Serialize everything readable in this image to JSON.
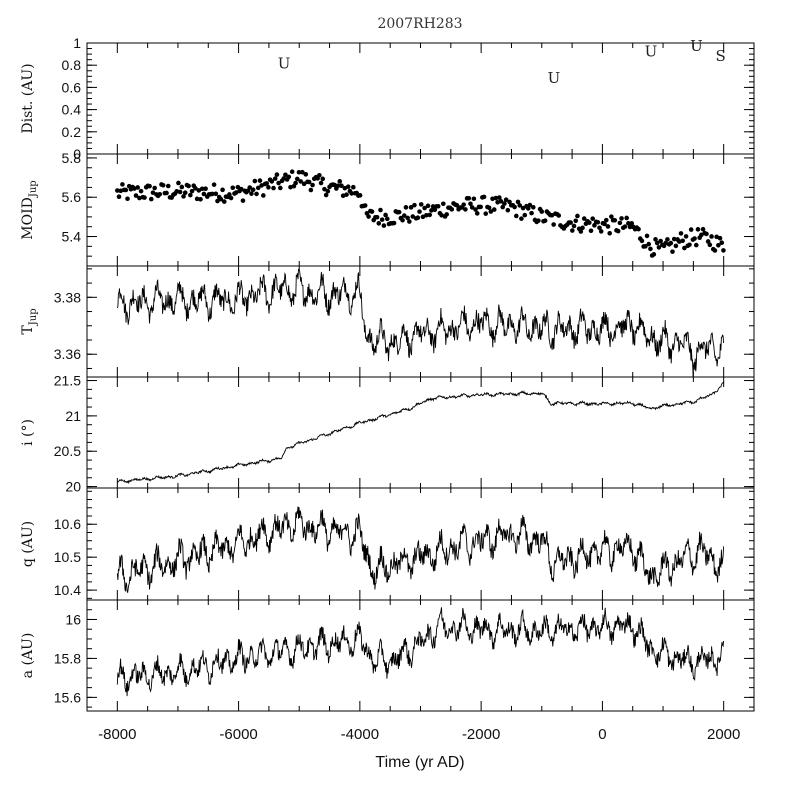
{
  "chart_data": {
    "type": "line",
    "title": "2007RH283",
    "xlabel": "Time (yr AD)",
    "xlim": [
      -8500,
      2500
    ],
    "xticks": [
      "-8000",
      "-6000",
      "-4000",
      "-2000",
      "0",
      "2000"
    ],
    "panels": [
      {
        "id": "dist",
        "ylabel": "Dist. (AU)",
        "ylim": [
          0,
          1
        ],
        "yticks": [
          "0",
          "0.2",
          "0.4",
          "0.6",
          "0.8",
          "1"
        ],
        "ytick_values": [
          0,
          0.2,
          0.4,
          0.6,
          0.8,
          1
        ],
        "style": "labels",
        "encounters": [
          {
            "t": -5250,
            "d": 0.77,
            "label": "U"
          },
          {
            "t": -800,
            "d": 0.64,
            "label": "U"
          },
          {
            "t": 800,
            "d": 0.88,
            "label": "U"
          },
          {
            "t": 1550,
            "d": 0.93,
            "label": "U"
          },
          {
            "t": 1950,
            "d": 0.84,
            "label": "S"
          }
        ]
      },
      {
        "id": "moid",
        "ylabel": "MOID",
        "ylabel_sub": "Jup",
        "ylim": [
          5.25,
          5.82
        ],
        "yticks": [
          "5.4",
          "5.6",
          "5.8"
        ],
        "ytick_values": [
          5.4,
          5.6,
          5.8
        ],
        "style": "scatter",
        "keypoints": [
          [
            -8000,
            5.62
          ],
          [
            -7000,
            5.63
          ],
          [
            -6000,
            5.62
          ],
          [
            -5500,
            5.66
          ],
          [
            -5000,
            5.7
          ],
          [
            -4500,
            5.65
          ],
          [
            -4000,
            5.63
          ],
          [
            -3900,
            5.5
          ],
          [
            -3500,
            5.5
          ],
          [
            -3000,
            5.52
          ],
          [
            -2500,
            5.55
          ],
          [
            -2000,
            5.56
          ],
          [
            -1500,
            5.55
          ],
          [
            -1000,
            5.5
          ],
          [
            -500,
            5.47
          ],
          [
            0,
            5.46
          ],
          [
            500,
            5.45
          ],
          [
            800,
            5.35
          ],
          [
            1000,
            5.33
          ],
          [
            1300,
            5.38
          ],
          [
            1600,
            5.4
          ],
          [
            1800,
            5.38
          ],
          [
            2000,
            5.35
          ]
        ],
        "noise": 0.045
      },
      {
        "id": "tjup",
        "ylabel": "T",
        "ylabel_sub": "Jup",
        "ylim": [
          3.352,
          3.391
        ],
        "yticks": [
          "3.36",
          "3.38"
        ],
        "ytick_values": [
          3.36,
          3.38
        ],
        "style": "line",
        "keypoints": [
          [
            -8000,
            3.378
          ],
          [
            -7000,
            3.379
          ],
          [
            -6000,
            3.379
          ],
          [
            -5500,
            3.382
          ],
          [
            -5200,
            3.383
          ],
          [
            -4500,
            3.381
          ],
          [
            -4000,
            3.382
          ],
          [
            -3900,
            3.366
          ],
          [
            -3500,
            3.364
          ],
          [
            -3000,
            3.367
          ],
          [
            -2500,
            3.369
          ],
          [
            -2000,
            3.371
          ],
          [
            -1500,
            3.37
          ],
          [
            -1000,
            3.369
          ],
          [
            -500,
            3.369
          ],
          [
            0,
            3.369
          ],
          [
            500,
            3.37
          ],
          [
            800,
            3.366
          ],
          [
            1000,
            3.364
          ],
          [
            1300,
            3.364
          ],
          [
            1500,
            3.36
          ],
          [
            1800,
            3.363
          ],
          [
            2000,
            3.36
          ]
        ],
        "noise": 0.0085
      },
      {
        "id": "incl",
        "ylabel": "i (°)",
        "ylim": [
          19.98,
          21.55
        ],
        "yticks": [
          "20",
          "20.5",
          "21",
          "21.5"
        ],
        "ytick_values": [
          20,
          20.5,
          21,
          21.5
        ],
        "style": "line",
        "keypoints": [
          [
            -8000,
            20.07
          ],
          [
            -7000,
            20.15
          ],
          [
            -6000,
            20.3
          ],
          [
            -5300,
            20.4
          ],
          [
            -5200,
            20.55
          ],
          [
            -4500,
            20.75
          ],
          [
            -4000,
            20.9
          ],
          [
            -3500,
            21.02
          ],
          [
            -3200,
            21.1
          ],
          [
            -2800,
            21.25
          ],
          [
            -2000,
            21.3
          ],
          [
            -1000,
            21.32
          ],
          [
            -850,
            21.18
          ],
          [
            0,
            21.17
          ],
          [
            500,
            21.18
          ],
          [
            800,
            21.1
          ],
          [
            1000,
            21.14
          ],
          [
            1500,
            21.2
          ],
          [
            1800,
            21.3
          ],
          [
            2000,
            21.45
          ]
        ],
        "noise": 0.035
      },
      {
        "id": "q",
        "ylabel": "q (AU)",
        "ylim": [
          10.37,
          10.71
        ],
        "yticks": [
          "10.4",
          "10.5",
          "10.6"
        ],
        "ytick_values": [
          10.4,
          10.5,
          10.6
        ],
        "style": "line",
        "keypoints": [
          [
            -8000,
            10.44
          ],
          [
            -7000,
            10.49
          ],
          [
            -6000,
            10.54
          ],
          [
            -5500,
            10.58
          ],
          [
            -5000,
            10.6
          ],
          [
            -4500,
            10.58
          ],
          [
            -4000,
            10.57
          ],
          [
            -3800,
            10.46
          ],
          [
            -3000,
            10.5
          ],
          [
            -2500,
            10.53
          ],
          [
            -1500,
            10.57
          ],
          [
            -1000,
            10.55
          ],
          [
            -800,
            10.48
          ],
          [
            0,
            10.52
          ],
          [
            500,
            10.53
          ],
          [
            800,
            10.44
          ],
          [
            1200,
            10.48
          ],
          [
            1600,
            10.52
          ],
          [
            2000,
            10.47
          ]
        ],
        "noise": 0.075
      },
      {
        "id": "a",
        "ylabel": "a (AU)",
        "ylim": [
          15.53,
          16.1
        ],
        "yticks": [
          "15.6",
          "15.8",
          "16"
        ],
        "ytick_values": [
          15.6,
          15.8,
          16.0
        ],
        "style": "line",
        "keypoints": [
          [
            -8000,
            15.7
          ],
          [
            -7000,
            15.73
          ],
          [
            -6000,
            15.8
          ],
          [
            -5000,
            15.85
          ],
          [
            -4000,
            15.9
          ],
          [
            -3800,
            15.8
          ],
          [
            -3500,
            15.78
          ],
          [
            -3000,
            15.88
          ],
          [
            -2700,
            15.97
          ],
          [
            -2000,
            15.95
          ],
          [
            -1000,
            15.94
          ],
          [
            0,
            15.96
          ],
          [
            500,
            15.97
          ],
          [
            800,
            15.85
          ],
          [
            1200,
            15.8
          ],
          [
            1600,
            15.78
          ],
          [
            2000,
            15.82
          ]
        ],
        "noise": 0.11
      }
    ]
  }
}
